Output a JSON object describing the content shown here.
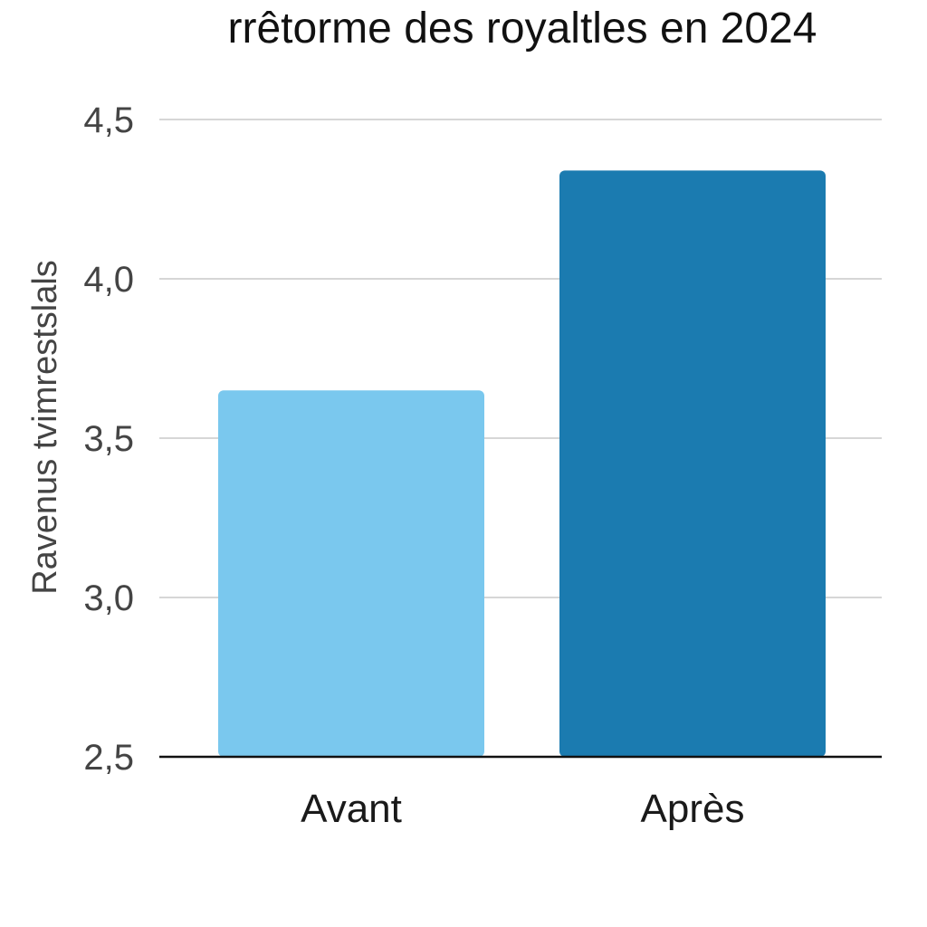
{
  "chart_data": {
    "type": "bar",
    "title": "rrêtorme des royaltles en 2024",
    "xlabel": "",
    "ylabel": "Ravenus tvimrestslals",
    "categories": [
      "Avant",
      "Après"
    ],
    "values": [
      3.65,
      4.34
    ],
    "colors": [
      "#7ac8ee",
      "#1b7bb0"
    ],
    "ylim": [
      2.5,
      4.5
    ],
    "yticks": [
      2.5,
      3.0,
      3.5,
      4.0,
      4.5
    ],
    "ytick_labels": [
      "2,5",
      "3,0",
      "3,5",
      "4,0",
      "4,5"
    ],
    "grid": true,
    "grid_color": "#d6d6d6",
    "baseline_color": "#111111",
    "legend": "none"
  }
}
